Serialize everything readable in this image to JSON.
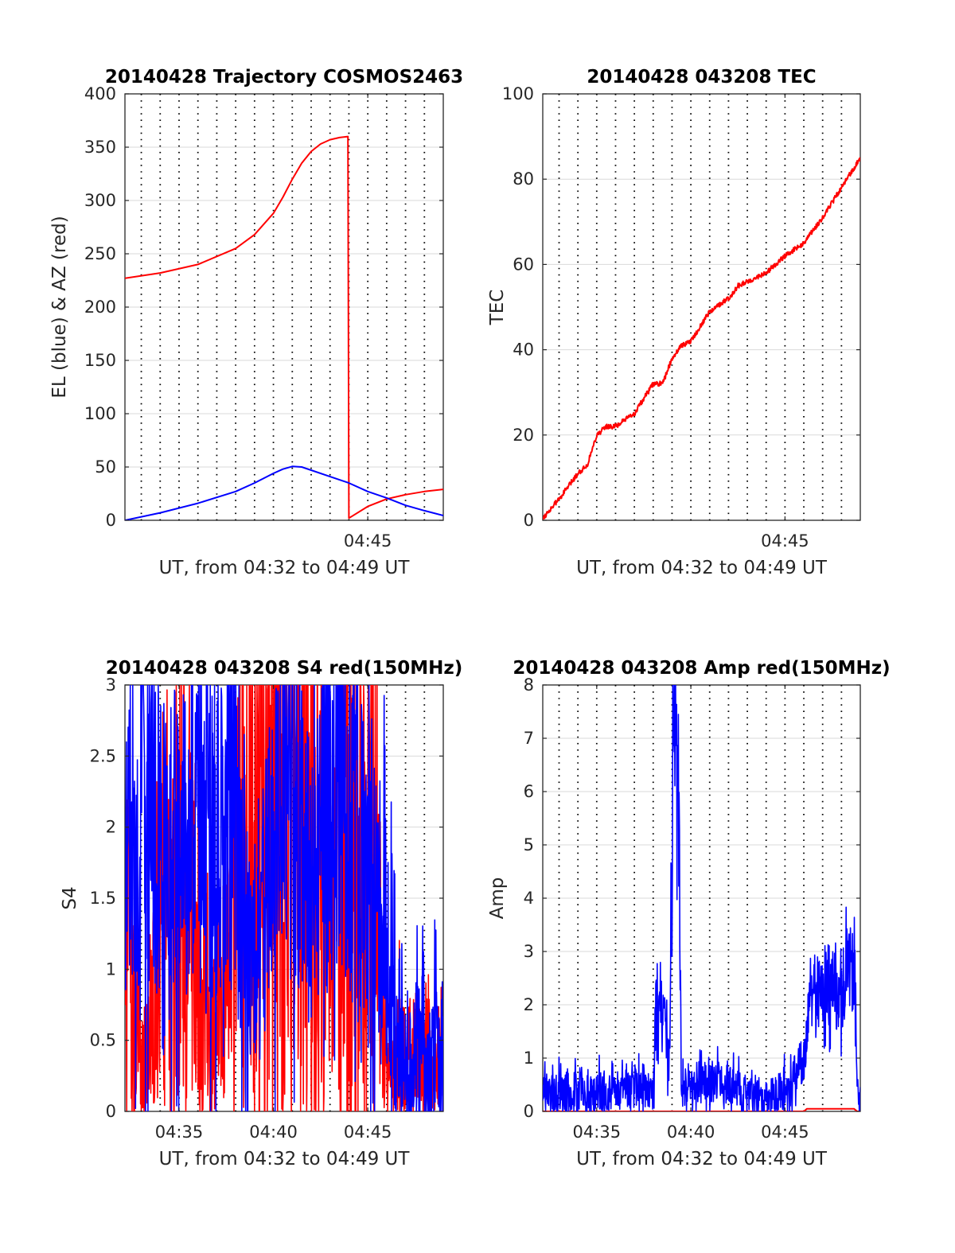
{
  "colors": {
    "red": "#ff0000",
    "blue": "#0000ff",
    "axis": "#262626",
    "title": "#000000",
    "grid": "#d9d9d9",
    "vgrid": "#000000"
  },
  "chart_data": [
    {
      "id": "traj",
      "type": "line",
      "title": "20140428 Trajectory COSMOS2463",
      "xlabel": "UT, from 04:32 to 04:49 UT",
      "ylabel": "EL (blue) & AZ (red)",
      "xlim": [
        "04:32:08",
        "04:49:00"
      ],
      "ylim": [
        0,
        400
      ],
      "yticks": [
        0,
        50,
        100,
        150,
        200,
        250,
        300,
        350,
        400
      ],
      "ytick_labels": [
        "0",
        "50",
        "100",
        "150",
        "200",
        "250",
        "300",
        "350",
        "400"
      ],
      "xticks": [
        "04:45"
      ],
      "xtick_labels": [
        "04:45"
      ],
      "vgrid_minutes": [
        "04:33",
        "04:34",
        "04:35",
        "04:36",
        "04:37",
        "04:38",
        "04:39",
        "04:40",
        "04:41",
        "04:42",
        "04:43",
        "04:44",
        "04:45",
        "04:46",
        "04:47",
        "04:48"
      ],
      "series": [
        {
          "color": "red",
          "x": [
            "04:32:08",
            "04:34:00",
            "04:36:00",
            "04:38:00",
            "04:39:00",
            "04:40:00",
            "04:40:30",
            "04:41:00",
            "04:41:30",
            "04:42:00",
            "04:42:30",
            "04:43:00",
            "04:43:30",
            "04:43:57",
            "04:44:00",
            "04:45:00",
            "04:46:00",
            "04:47:00",
            "04:48:00",
            "04:49:00"
          ],
          "y": [
            227,
            232,
            240,
            255,
            268,
            288,
            303,
            320,
            335,
            346,
            353,
            357,
            359,
            360,
            2,
            13,
            20,
            24,
            27,
            29
          ]
        },
        {
          "color": "blue",
          "x": [
            "04:32:08",
            "04:34:00",
            "04:36:00",
            "04:38:00",
            "04:39:00",
            "04:40:00",
            "04:40:30",
            "04:41:00",
            "04:41:30",
            "04:42:00",
            "04:43:00",
            "04:44:00",
            "04:45:00",
            "04:46:00",
            "04:47:00",
            "04:48:00",
            "04:49:00"
          ],
          "y": [
            0,
            7,
            16,
            27,
            35,
            44,
            48,
            50.5,
            50,
            47,
            41,
            35,
            27,
            21,
            14,
            9,
            4.5
          ]
        }
      ]
    },
    {
      "id": "tec",
      "type": "line",
      "title": "20140428 043208 TEC",
      "xlabel": "UT, from 04:32 to 04:49 UT",
      "ylabel": "TEC",
      "xlim": [
        "04:32:08",
        "04:49:00"
      ],
      "ylim": [
        0,
        100
      ],
      "yticks": [
        0,
        20,
        40,
        60,
        80,
        100
      ],
      "ytick_labels": [
        "0",
        "20",
        "40",
        "60",
        "80",
        "100"
      ],
      "xticks": [
        "04:45"
      ],
      "xtick_labels": [
        "04:45"
      ],
      "vgrid_minutes": [
        "04:33",
        "04:34",
        "04:35",
        "04:36",
        "04:37",
        "04:38",
        "04:39",
        "04:40",
        "04:41",
        "04:42",
        "04:43",
        "04:44",
        "04:45",
        "04:46",
        "04:47",
        "04:48"
      ],
      "series": [
        {
          "color": "red",
          "x": [
            "04:32:08",
            "04:33:00",
            "04:34:00",
            "04:34:30",
            "04:35:00",
            "04:35:30",
            "04:36:00",
            "04:37:00",
            "04:38:00",
            "04:38:30",
            "04:39:00",
            "04:39:30",
            "04:40:00",
            "04:41:00",
            "04:42:00",
            "04:42:30",
            "04:43:00",
            "04:44:00",
            "04:45:00",
            "04:46:00",
            "04:47:00",
            "04:48:00",
            "04:49:00"
          ],
          "y": [
            0.5,
            5,
            11,
            13,
            20,
            22,
            22,
            25,
            32,
            32,
            38,
            41,
            42,
            49,
            52,
            55,
            56,
            58,
            62,
            65,
            71,
            78,
            85
          ]
        }
      ]
    },
    {
      "id": "s4",
      "type": "line",
      "title": "20140428 043208 S4 red(150MHz)",
      "xlabel": "UT, from 04:32 to 04:49 UT",
      "ylabel": "S4",
      "xlim": [
        "04:32:08",
        "04:49:00"
      ],
      "ylim": [
        0,
        3
      ],
      "yticks": [
        0,
        0.5,
        1,
        1.5,
        2,
        2.5,
        3
      ],
      "ytick_labels": [
        "0",
        "0.5",
        "1",
        "1.5",
        "2",
        "2.5",
        "3"
      ],
      "xticks": [
        "04:35",
        "04:40",
        "04:45"
      ],
      "xtick_labels": [
        "04:35",
        "04:40",
        "04:45"
      ],
      "vgrid_minutes": [
        "04:33",
        "04:34",
        "04:35",
        "04:36",
        "04:37",
        "04:38",
        "04:39",
        "04:40",
        "04:41",
        "04:42",
        "04:43",
        "04:44",
        "04:45",
        "04:46",
        "04:47",
        "04:48"
      ],
      "series": [
        {
          "color": "red",
          "noise": [
            0.0,
            3.0
          ],
          "x": [
            "04:32:08",
            "04:33:00",
            "04:34:00",
            "04:35:00",
            "04:36:00",
            "04:37:00",
            "04:38:00",
            "04:39:00",
            "04:40:00",
            "04:41:00",
            "04:42:00",
            "04:43:00",
            "04:44:00",
            "04:45:00",
            "04:46:00",
            "04:46:30",
            "04:47:00",
            "04:48:00",
            "04:49:00"
          ],
          "y": [
            1.5,
            0.3,
            1.0,
            1.5,
            1.2,
            0.5,
            1.4,
            2.0,
            2.2,
            2.5,
            2.0,
            1.5,
            2.2,
            2.5,
            0.3,
            0.45,
            0.4,
            0.42,
            0.4
          ]
        },
        {
          "color": "blue",
          "noise": [
            0.4,
            1.2
          ],
          "x": [
            "04:32:08",
            "04:33:00",
            "04:34:00",
            "04:35:00",
            "04:36:00",
            "04:37:00",
            "04:38:00",
            "04:38:30",
            "04:39:00",
            "04:40:00",
            "04:41:00",
            "04:42:00",
            "04:43:00",
            "04:44:00",
            "04:45:00",
            "04:46:00",
            "04:46:30",
            "04:47:00",
            "04:48:00",
            "04:49:00"
          ],
          "y": [
            2.0,
            2.1,
            2.0,
            1.8,
            2.0,
            1.8,
            2.0,
            1.2,
            0.9,
            1.9,
            2.2,
            1.6,
            2.3,
            2.0,
            1.8,
            1.3,
            0.45,
            0.4,
            0.42,
            0.4
          ]
        }
      ]
    },
    {
      "id": "amp",
      "type": "line",
      "title": "20140428 043208 Amp red(150MHz)",
      "xlabel": "UT, from 04:32 to 04:49 UT",
      "ylabel": "Amp",
      "xlim": [
        "04:32:08",
        "04:49:00"
      ],
      "ylim": [
        0,
        8
      ],
      "yticks": [
        0,
        1,
        2,
        3,
        4,
        5,
        6,
        7,
        8
      ],
      "ytick_labels": [
        "0",
        "1",
        "2",
        "3",
        "4",
        "5",
        "6",
        "7",
        "8"
      ],
      "xticks": [
        "04:35",
        "04:40",
        "04:45"
      ],
      "xtick_labels": [
        "04:35",
        "04:40",
        "04:45"
      ],
      "vgrid_minutes": [
        "04:33",
        "04:34",
        "04:35",
        "04:36",
        "04:37",
        "04:38",
        "04:39",
        "04:40",
        "04:41",
        "04:42",
        "04:43",
        "04:44",
        "04:45",
        "04:46",
        "04:47",
        "04:48"
      ],
      "series": [
        {
          "color": "red",
          "x": [
            "04:32:08",
            "04:46:00",
            "04:46:10",
            "04:48:40",
            "04:48:50",
            "04:49:00"
          ],
          "y": [
            0,
            0,
            0.05,
            0.05,
            0,
            0
          ]
        },
        {
          "color": "blue",
          "noise": [
            0.3,
            1.6
          ],
          "x": [
            "04:32:08",
            "04:35:00",
            "04:38:00",
            "04:38:10",
            "04:38:40",
            "04:38:50",
            "04:39:05",
            "04:39:20",
            "04:39:30",
            "04:39:40",
            "04:40:00",
            "04:41:00",
            "04:42:00",
            "04:43:00",
            "04:44:00",
            "04:45:00",
            "04:46:00",
            "04:46:20",
            "04:47:00",
            "04:48:00",
            "04:48:40",
            "04:48:50",
            "04:49:00"
          ],
          "y": [
            0.35,
            0.4,
            0.4,
            2.1,
            2.2,
            0.4,
            7.8,
            6.5,
            0.4,
            0.5,
            0.5,
            0.6,
            0.5,
            0.3,
            0.3,
            0.4,
            1.0,
            2.2,
            2.3,
            2.3,
            2.7,
            0.4,
            0.3
          ]
        }
      ]
    }
  ]
}
